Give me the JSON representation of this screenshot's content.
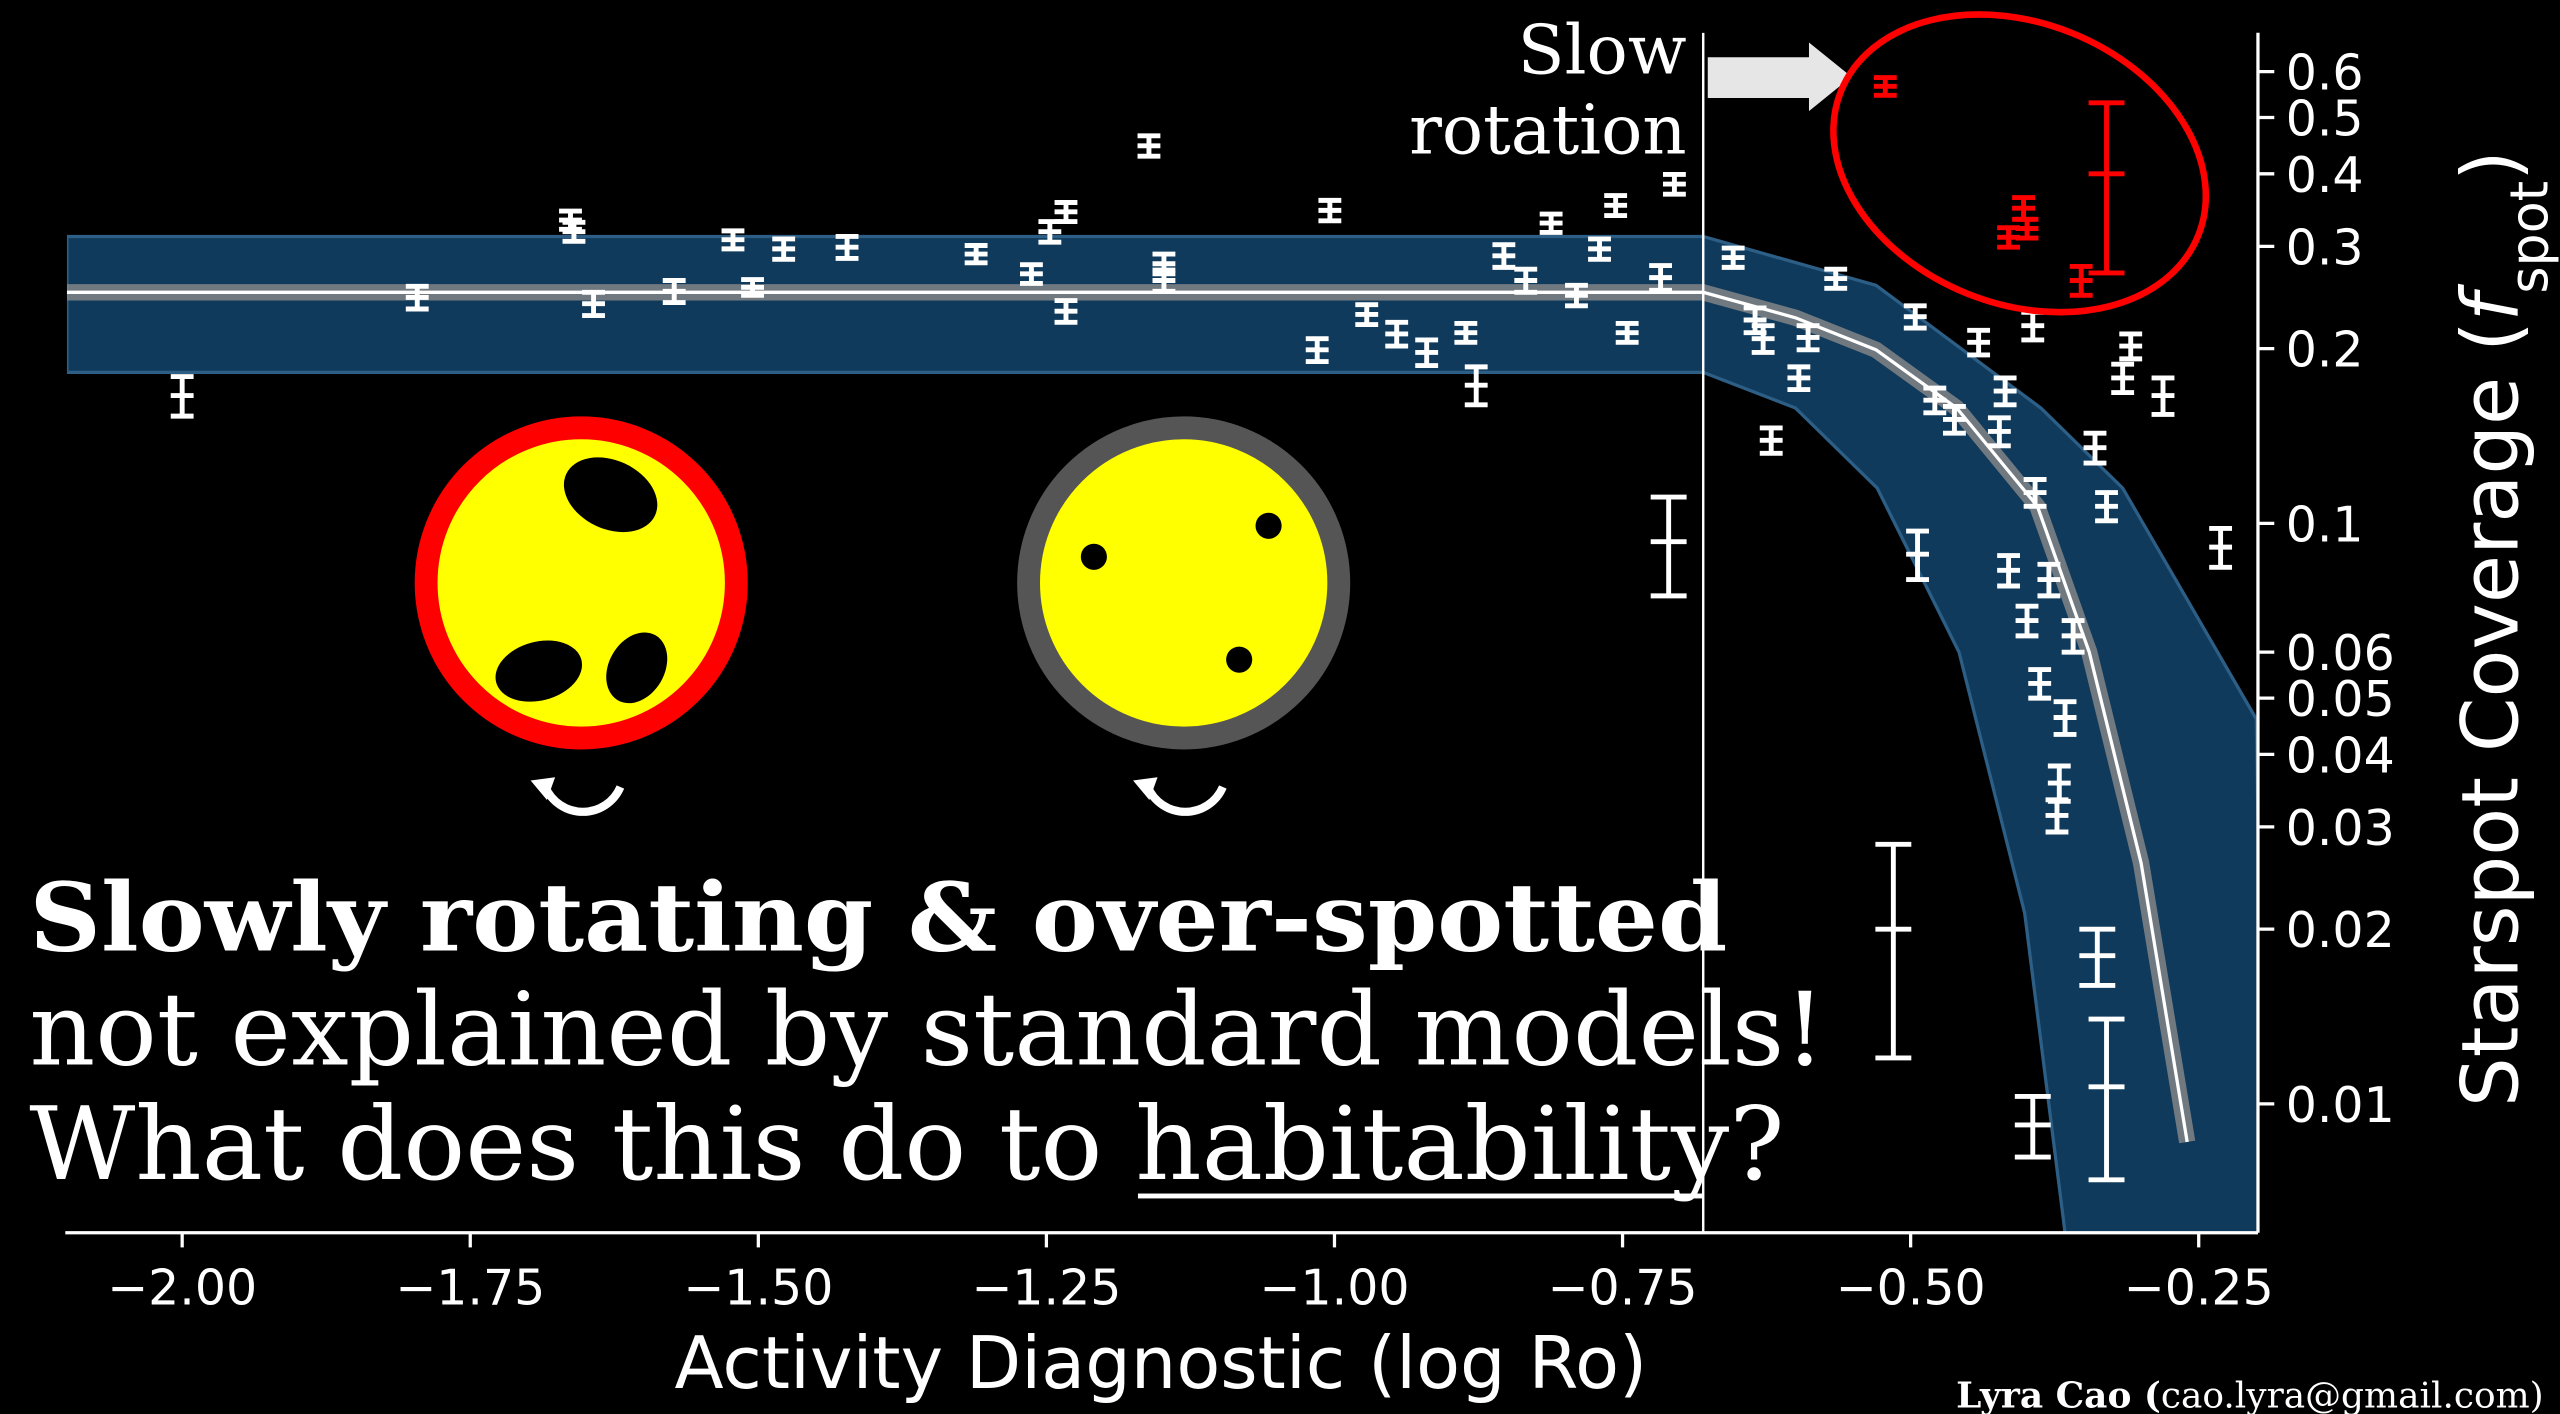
{
  "chart_data": {
    "type": "scatter",
    "xlabel": "Activity Diagnostic (log Ro)",
    "ylabel": "Starspot Coverage (",
    "ylabel_var": "f",
    "ylabel_sub": "spot",
    "ylabel_end": ")",
    "log_y": true,
    "xlim": [
      -2.1,
      -0.2
    ],
    "ylim": [
      0.006,
      0.7
    ],
    "xticks": [
      {
        "value": -2,
        "label": "−2.00"
      },
      {
        "value": -1.75,
        "label": "−1.75"
      },
      {
        "value": -1.5,
        "label": "−1.50"
      },
      {
        "value": -1.25,
        "label": "−1.25"
      },
      {
        "value": -1,
        "label": "−1.00"
      },
      {
        "value": -0.75,
        "label": "−0.75"
      },
      {
        "value": -0.5,
        "label": "−0.50"
      },
      {
        "value": -0.25,
        "label": "−0.25"
      }
    ],
    "yticks": [
      0.6,
      0.5,
      0.4,
      0.3,
      0.2,
      0.1,
      0.06,
      0.05,
      0.04,
      0.03,
      0.02,
      0.01
    ],
    "vline": -0.68,
    "points": {
      "color": "#ffffff",
      "x": [
        -2.0,
        -1.796,
        -1.663,
        -1.66,
        -1.643,
        -1.573,
        -1.522,
        -1.505,
        -1.478,
        -1.423,
        -1.311,
        -1.263,
        -1.247,
        -1.233,
        -1.233,
        -1.161,
        -1.148,
        -1.148,
        -1.004,
        -1.015,
        -0.972,
        -0.946,
        -0.92,
        -0.886,
        -0.877,
        -0.853,
        -0.834,
        -0.812,
        -0.79,
        -0.77,
        -0.756,
        -0.746,
        -0.717,
        -0.705,
        -0.71,
        -0.654,
        -0.635,
        -0.628,
        -0.621,
        -0.597,
        -0.589,
        -0.565,
        -0.515,
        -0.496,
        -0.494,
        -0.479,
        -0.462,
        -0.441,
        -0.418,
        -0.394,
        -0.392,
        -0.38,
        -0.399,
        -0.388,
        -0.366,
        -0.371,
        -0.373,
        -0.338,
        -0.33,
        -0.34,
        -0.33,
        -0.309,
        -0.316,
        -0.281,
        -0.231,
        -0.394,
        -0.359,
        -0.415,
        -0.423
      ],
      "y": [
        0.166,
        0.245,
        0.333,
        0.318,
        0.239,
        0.251,
        0.308,
        0.255,
        0.297,
        0.299,
        0.291,
        0.269,
        0.318,
        0.344,
        0.232,
        0.447,
        0.28,
        0.262,
        0.346,
        0.199,
        0.229,
        0.212,
        0.197,
        0.213,
        0.173,
        0.289,
        0.262,
        0.329,
        0.247,
        0.297,
        0.353,
        0.213,
        0.265,
        0.384,
        0.093,
        0.287,
        0.224,
        0.208,
        0.139,
        0.178,
        0.209,
        0.264,
        0.02,
        0.227,
        0.0885,
        0.163,
        0.151,
        0.205,
        0.169,
        0.0092,
        0.113,
        0.08,
        0.068,
        0.053,
        0.0463,
        0.0357,
        0.0314,
        0.018,
        0.0107,
        0.135,
        0.107,
        0.202,
        0.178,
        0.166,
        0.091,
        0.219,
        0.064,
        0.083,
        0.144
      ],
      "yerr": [
        0.013,
        0.011,
        0.012,
        0.012,
        0.011,
        0.011,
        0.011,
        0.008,
        0.012,
        0.013,
        0.01,
        0.01,
        0.013,
        0.013,
        0.01,
        0.018,
        0.011,
        0.011,
        0.014,
        0.009,
        0.009,
        0.01,
        0.01,
        0.008,
        0.013,
        0.013,
        0.012,
        0.012,
        0.01,
        0.012,
        0.014,
        0.008,
        0.013,
        0.015,
        0.018,
        0.011,
        0.011,
        0.011,
        0.007,
        0.008,
        0.01,
        0.01,
        0.008,
        0.01,
        0.0085,
        0.008,
        0.008,
        0.01,
        0.009,
        0.0011,
        0.006,
        0.005,
        0.004,
        0.003,
        0.003,
        0.0025,
        0.002,
        0.002,
        0.0033,
        0.008,
        0.006,
        0.01,
        0.01,
        0.012,
        0.007,
        0.012,
        0.004,
        0.005,
        0.008
      ]
    },
    "highlight": {
      "color": "#ff0000",
      "x": [
        -0.522,
        -0.33,
        -0.402,
        -0.399,
        -0.415,
        -0.352
      ],
      "y": [
        0.566,
        0.4,
        0.349,
        0.322,
        0.311,
        0.262
      ],
      "yerr": [
        0.02,
        0.13,
        0.015,
        0.012,
        0.012,
        0.015
      ]
    },
    "model": {
      "color": "#ffffff",
      "glow": "#8a8a8a",
      "x": [
        -2.1,
        -0.68,
        -0.6,
        -0.53,
        -0.46,
        -0.39,
        -0.345,
        -0.3,
        -0.26
      ],
      "y": [
        0.25,
        0.25,
        0.226,
        0.199,
        0.158,
        0.107,
        0.06,
        0.026,
        0.0086
      ]
    },
    "band": {
      "color": "#0f3a5c",
      "edge": "#2d5f86",
      "x_upper": [
        -2.1,
        -0.68,
        -0.53,
        -0.387,
        -0.316,
        -0.2
      ],
      "upper": [
        0.312,
        0.312,
        0.257,
        0.158,
        0.115,
        0.046
      ],
      "x_lower": [
        -2.1,
        -0.68,
        -0.6,
        -0.529,
        -0.458,
        -0.401,
        -0.366
      ],
      "lower": [
        0.182,
        0.182,
        0.158,
        0.115,
        0.06,
        0.0213,
        0.006
      ]
    },
    "annotation": [
      "Slow",
      "rotation"
    ],
    "headline": "Slowly rotating & over-spotted",
    "line2": "not explained by standard models!",
    "line3": [
      "What does this do to ",
      "habitability",
      "?"
    ],
    "credit": [
      "Lyra Cao (",
      "cao.lyra@gmail.com)"
    ]
  }
}
